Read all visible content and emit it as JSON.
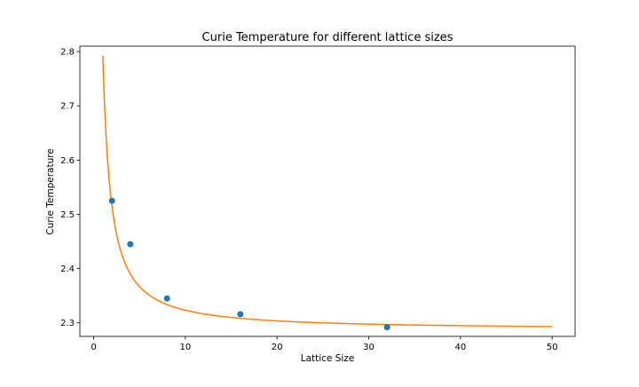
{
  "chart_data": {
    "type": "scatter",
    "title": "Curie Temperature for different lattice sizes",
    "xlabel": "Lattice Size",
    "ylabel": "Curie Temperature",
    "xlim": [
      -1.5,
      52.5
    ],
    "ylim": [
      2.275,
      2.81
    ],
    "x_ticks": [
      0,
      10,
      20,
      30,
      40,
      50
    ],
    "y_ticks": [
      2.3,
      2.4,
      2.5,
      2.6,
      2.7,
      2.8
    ],
    "x_tick_labels": [
      "0",
      "10",
      "20",
      "30",
      "40",
      "50"
    ],
    "y_tick_labels": [
      "2.3",
      "2.4",
      "2.5",
      "2.6",
      "2.7",
      "2.8"
    ],
    "grid": false,
    "legend": "none",
    "series": [
      {
        "kind": "scatter",
        "color": "#1f77b4",
        "x": [
          2,
          4,
          8,
          16,
          32
        ],
        "y": [
          2.525,
          2.445,
          2.345,
          2.316,
          2.292
        ]
      },
      {
        "kind": "line",
        "color": "#ff7f0e",
        "function": "2.2875 + 0.505 * x^(-1.15)",
        "x_range": [
          1,
          50
        ]
      }
    ]
  }
}
